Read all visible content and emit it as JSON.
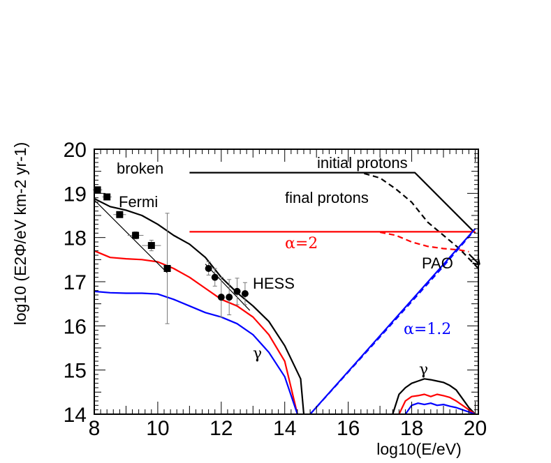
{
  "chart_data": {
    "type": "line",
    "title": "",
    "xlabel": "log10(E/eV)",
    "ylabel": "log10 (E2Φ/eV km-2 yr-1)",
    "xlim": [
      8,
      20.1
    ],
    "ylim": [
      14,
      20
    ],
    "x_ticks": [
      "8",
      "10",
      "12",
      "14",
      "16",
      "18",
      "20"
    ],
    "y_ticks": [
      "14",
      "15",
      "16",
      "17",
      "18",
      "19",
      "20"
    ],
    "grid": false,
    "colors": {
      "broken": "#000000",
      "alpha2": "#ff0000",
      "alpha12": "#0000ff",
      "data": "#000000"
    },
    "annotations": {
      "broken": "broken",
      "initial_protons": "initial protons",
      "final_protons": "final protons",
      "fermi": "Fermi",
      "hess": "HESS",
      "pao": "PAO",
      "alpha2": "α=2",
      "alpha12": "α=1.2",
      "gamma_low": "γ",
      "gamma_high": "γ"
    },
    "series": [
      {
        "id": "broken-initial",
        "color": "#000000",
        "dash": "solid",
        "x": [
          11,
          18.1,
          20
        ],
        "y": [
          19.47,
          19.47,
          18.1
        ]
      },
      {
        "id": "broken-final",
        "color": "#000000",
        "dash": "dashed",
        "x": [
          16.5,
          17.0,
          17.5,
          18.0,
          18.5,
          19.0,
          19.5,
          19.9,
          20.1
        ],
        "y": [
          19.45,
          19.35,
          19.1,
          18.8,
          18.35,
          18.05,
          17.75,
          17.45,
          17.3
        ]
      },
      {
        "id": "alpha2-initial",
        "color": "#ff0000",
        "dash": "solid",
        "x": [
          11,
          20
        ],
        "y": [
          18.13,
          18.13
        ]
      },
      {
        "id": "alpha2-final",
        "color": "#ff0000",
        "dash": "dashed",
        "x": [
          17.0,
          17.5,
          18.0,
          18.5,
          19.0,
          19.5,
          19.8
        ],
        "y": [
          18.12,
          18.05,
          17.9,
          17.8,
          17.75,
          17.72,
          17.68
        ]
      },
      {
        "id": "alpha12-initial",
        "color": "#0000ff",
        "dash": "solid",
        "x": [
          14.8,
          20
        ],
        "y": [
          14.0,
          18.2
        ]
      },
      {
        "id": "alpha12-final",
        "color": "#0000ff",
        "dash": "dashed",
        "x": [
          14.8,
          17.0,
          19.0,
          19.9
        ],
        "y": [
          14.0,
          15.75,
          17.35,
          18.1
        ]
      },
      {
        "id": "gamma-broken",
        "color": "#000000",
        "dash": "solid",
        "x": [
          8.0,
          8.5,
          9.0,
          9.5,
          10.0,
          10.5,
          11.0,
          11.5,
          12.0,
          12.5,
          13.0,
          13.5,
          14.0,
          14.3,
          14.5,
          14.6
        ],
        "y": [
          18.88,
          18.7,
          18.62,
          18.5,
          18.3,
          18.05,
          17.85,
          17.55,
          17.1,
          16.75,
          16.45,
          16.1,
          15.55,
          15.1,
          14.8,
          14.0
        ]
      },
      {
        "id": "gamma-alpha2",
        "color": "#ff0000",
        "dash": "solid",
        "x": [
          8.0,
          8.5,
          9.0,
          9.5,
          10.0,
          10.5,
          11.0,
          11.5,
          12.0,
          12.5,
          13.0,
          13.5,
          14.0,
          14.4
        ],
        "y": [
          17.7,
          17.55,
          17.52,
          17.5,
          17.45,
          17.3,
          17.1,
          16.85,
          16.6,
          16.45,
          16.2,
          15.8,
          15.2,
          14.0
        ]
      },
      {
        "id": "gamma-alpha12",
        "color": "#0000ff",
        "dash": "solid",
        "x": [
          8.0,
          8.5,
          9.0,
          9.5,
          10.0,
          10.5,
          11.0,
          11.5,
          12.0,
          12.5,
          13.0,
          13.5,
          14.0,
          14.4
        ],
        "y": [
          16.78,
          16.75,
          16.74,
          16.74,
          16.72,
          16.6,
          16.45,
          16.3,
          16.2,
          16.05,
          15.8,
          15.4,
          14.85,
          14.0
        ]
      },
      {
        "id": "gamma-high-broken",
        "color": "#000000",
        "dash": "solid",
        "x": [
          17.4,
          17.6,
          17.8,
          18.0,
          18.2,
          18.4,
          18.6,
          18.8,
          19.0,
          19.2,
          19.4,
          19.6,
          19.8,
          20.0
        ],
        "y": [
          14.0,
          14.45,
          14.6,
          14.7,
          14.75,
          14.8,
          14.78,
          14.75,
          14.72,
          14.65,
          14.55,
          14.35,
          14.15,
          14.0
        ]
      },
      {
        "id": "gamma-high-alpha2",
        "color": "#ff0000",
        "dash": "solid",
        "x": [
          17.6,
          17.8,
          18.0,
          18.2,
          18.4,
          18.6,
          18.8,
          19.0,
          19.2,
          19.4,
          19.6,
          19.8,
          20.0
        ],
        "y": [
          14.0,
          14.3,
          14.4,
          14.42,
          14.45,
          14.4,
          14.45,
          14.42,
          14.38,
          14.3,
          14.2,
          14.1,
          14.0
        ]
      },
      {
        "id": "gamma-high-alpha12",
        "color": "#0000ff",
        "dash": "solid",
        "x": [
          17.8,
          18.0,
          18.2,
          18.4,
          18.6,
          18.8,
          19.0,
          19.2,
          19.4,
          19.6,
          19.8,
          20.0
        ],
        "y": [
          14.0,
          14.2,
          14.25,
          14.22,
          14.25,
          14.2,
          14.22,
          14.18,
          14.15,
          14.1,
          14.05,
          14.0
        ]
      }
    ],
    "fit_lines": [
      {
        "id": "fermi-fit",
        "x": [
          8.0,
          10.3
        ],
        "y": [
          18.85,
          17.2
        ]
      },
      {
        "id": "hess-fit",
        "x": [
          11.5,
          12.9
        ],
        "y": [
          17.4,
          16.35
        ]
      }
    ],
    "fermi_points": {
      "x": [
        8.1,
        8.4,
        8.8,
        9.3,
        9.8,
        10.3
      ],
      "y": [
        19.08,
        18.92,
        18.52,
        18.05,
        17.82,
        17.3
      ],
      "xerr": [
        0.15,
        0.15,
        0.2,
        0.25,
        0.3,
        0.1
      ],
      "yerr": [
        0.05,
        0.05,
        0.05,
        0.08,
        0.12,
        1.25
      ]
    },
    "hess_points": {
      "x": [
        11.6,
        11.8,
        12.0,
        12.25,
        12.5,
        12.75
      ],
      "y": [
        17.3,
        17.1,
        16.65,
        16.65,
        16.78,
        16.73
      ],
      "xerr": [
        0.1,
        0.1,
        0.1,
        0.1,
        0.1,
        0.1
      ],
      "yerr": [
        0.15,
        0.2,
        0.45,
        0.4,
        0.3,
        0.25
      ]
    },
    "pao_arrow": {
      "x": 20.05,
      "y": 17.45
    }
  }
}
